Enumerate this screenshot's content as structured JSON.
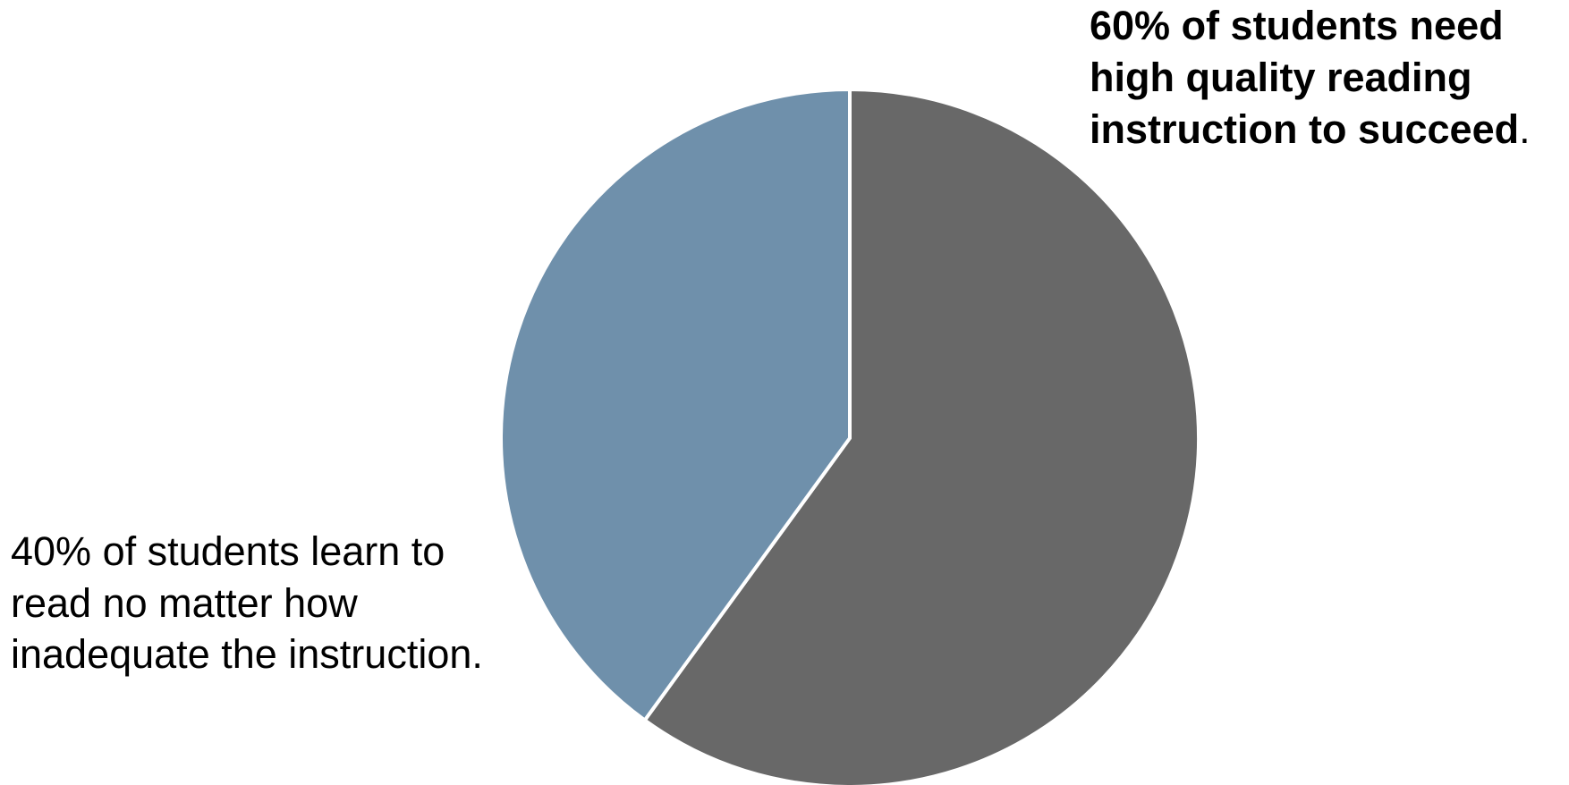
{
  "chart_data": {
    "type": "pie",
    "start_angle_deg": 0,
    "direction": "clockwise",
    "slices": [
      {
        "label_lines": [
          "60% of students need",
          "high quality reading",
          "instruction to succeed"
        ],
        "label_suffix": ".",
        "label_bold": true,
        "value": 60,
        "color": "#686868"
      },
      {
        "label_lines": [
          "40% of students learn to",
          "read no matter how",
          "inadequate the instruction."
        ],
        "label_suffix": "",
        "label_bold": false,
        "value": 40,
        "color": "#6f90ab"
      }
    ],
    "border_color": "#ffffff",
    "legend": "none"
  }
}
